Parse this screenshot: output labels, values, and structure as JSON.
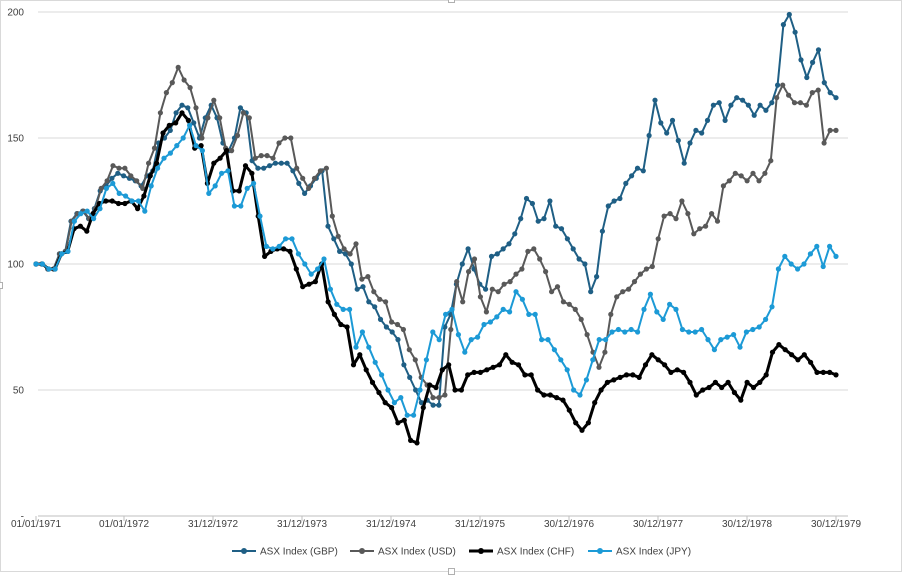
{
  "chart_data": {
    "type": "line",
    "title": "",
    "xlabel": "",
    "ylabel": "",
    "ylim": [
      0,
      200
    ],
    "y_ticks": [
      0,
      50,
      100,
      150,
      200
    ],
    "y_tick_labels": [
      "-",
      "50",
      "100",
      "150",
      "200"
    ],
    "x_tick_labels": [
      "01/01/1971",
      "01/01/1972",
      "31/12/1972",
      "31/12/1973",
      "31/12/1974",
      "31/12/1975",
      "30/12/1976",
      "30/12/1977",
      "30/12/1978",
      "30/12/1979"
    ],
    "grid": "horizontal",
    "legend_position": "bottom",
    "series": [
      {
        "name": "ASX Index (GBP)",
        "color": "#1f5f85",
        "values": [
          100,
          100,
          98,
          98,
          104,
          105,
          117,
          120,
          121,
          118,
          122,
          129,
          131,
          134,
          136,
          135,
          134,
          133,
          131,
          135,
          137,
          148,
          150,
          153,
          160,
          163,
          162,
          156,
          150,
          158,
          163,
          158,
          148,
          145,
          150,
          162,
          160,
          141,
          138,
          138,
          139,
          140,
          140,
          140,
          137,
          132,
          128,
          131,
          134,
          137,
          115,
          110,
          105,
          104,
          100,
          90,
          91,
          85,
          83,
          78,
          75,
          73,
          70,
          60,
          55,
          50,
          45,
          46,
          44,
          44,
          75,
          80,
          92,
          100,
          106,
          98,
          92,
          90,
          103,
          104,
          106,
          108,
          112,
          118,
          126,
          124,
          117,
          118,
          125,
          115,
          114,
          110,
          106,
          102,
          100,
          89,
          95,
          113,
          123,
          125,
          126,
          132,
          135,
          138,
          137,
          151,
          165,
          156,
          152,
          157,
          149,
          140,
          148,
          153,
          152,
          157,
          163,
          164,
          157,
          163,
          166,
          165,
          163,
          159,
          163,
          161,
          164,
          171,
          195,
          199,
          192,
          181,
          174,
          180,
          185,
          172,
          168,
          166
        ]
      },
      {
        "name": "ASX Index (USD)",
        "color": "#595959",
        "values": [
          100,
          100,
          98,
          98,
          104,
          105,
          117,
          120,
          121,
          118,
          122,
          130,
          133,
          139,
          138,
          138,
          135,
          133,
          130,
          140,
          146,
          160,
          168,
          172,
          178,
          173,
          170,
          162,
          150,
          158,
          165,
          158,
          146,
          145,
          151,
          160,
          158,
          142,
          143,
          143,
          142,
          148,
          150,
          150,
          138,
          134,
          130,
          134,
          137,
          138,
          119,
          111,
          106,
          104,
          108,
          94,
          95,
          89,
          86,
          85,
          77,
          76,
          74,
          66,
          62,
          55,
          52,
          47,
          47,
          48,
          74,
          93,
          85,
          97,
          102,
          87,
          81,
          90,
          89,
          92,
          93,
          96,
          98,
          105,
          106,
          102,
          97,
          89,
          91,
          85,
          84,
          82,
          78,
          72,
          65,
          59,
          65,
          80,
          87,
          89,
          90,
          93,
          96,
          98,
          99,
          110,
          119,
          120,
          118,
          125,
          120,
          112,
          114,
          115,
          120,
          117,
          131,
          133,
          136,
          135,
          133,
          136,
          133,
          136,
          141,
          166,
          171,
          167,
          164,
          164,
          163,
          168,
          169,
          148,
          153,
          153
        ]
      },
      {
        "name": "ASX Index (CHF)",
        "color": "#000000",
        "values": [
          100,
          100,
          98,
          98,
          104,
          105,
          114,
          115,
          113,
          120,
          124,
          125,
          125,
          124,
          124,
          125,
          122,
          127,
          135,
          140,
          152,
          155,
          156,
          160,
          157,
          146,
          147,
          132,
          140,
          142,
          145,
          129,
          129,
          139,
          136,
          119,
          103,
          105,
          106,
          106,
          105,
          98,
          91,
          92,
          93,
          100,
          85,
          80,
          76,
          75,
          60,
          64,
          58,
          53,
          49,
          45,
          43,
          37,
          38,
          30,
          29,
          43,
          52,
          51,
          58,
          60,
          50,
          50,
          56,
          57,
          57,
          58,
          59,
          60,
          64,
          61,
          60,
          56,
          56,
          50,
          48,
          48,
          47,
          46,
          42,
          37,
          34,
          37,
          45,
          50,
          53,
          54,
          55,
          56,
          56,
          55,
          60,
          64,
          62,
          60,
          57,
          58,
          57,
          53,
          48,
          50,
          51,
          53,
          51,
          53,
          49,
          46,
          53,
          51,
          53,
          56,
          65,
          68,
          66,
          64,
          62,
          64,
          61,
          57,
          57,
          57,
          56
        ]
      },
      {
        "name": "ASX Index (JPY)",
        "color": "#1c9ad6",
        "values": [
          100,
          100,
          98,
          98,
          104,
          105,
          117,
          120,
          121,
          118,
          122,
          130,
          132,
          128,
          127,
          125,
          125,
          121,
          131,
          138,
          142,
          144,
          147,
          150,
          155,
          147,
          145,
          128,
          131,
          136,
          137,
          123,
          123,
          130,
          132,
          119,
          107,
          106,
          107,
          110,
          110,
          104,
          100,
          96,
          98,
          102,
          90,
          84,
          82,
          82,
          67,
          73,
          67,
          61,
          56,
          50,
          45,
          47,
          40,
          40,
          50,
          62,
          73,
          70,
          80,
          82,
          72,
          65,
          70,
          71,
          76,
          77,
          79,
          82,
          81,
          89,
          86,
          80,
          80,
          70,
          70,
          66,
          62,
          58,
          50,
          48,
          54,
          62,
          70,
          70,
          73,
          74,
          73,
          74,
          73,
          82,
          88,
          81,
          78,
          84,
          82,
          74,
          73,
          73,
          74,
          70,
          66,
          70,
          71,
          72,
          67,
          73,
          74,
          75,
          78,
          83,
          98,
          103,
          100,
          98,
          100,
          104,
          107,
          99,
          107,
          103
        ]
      }
    ]
  }
}
